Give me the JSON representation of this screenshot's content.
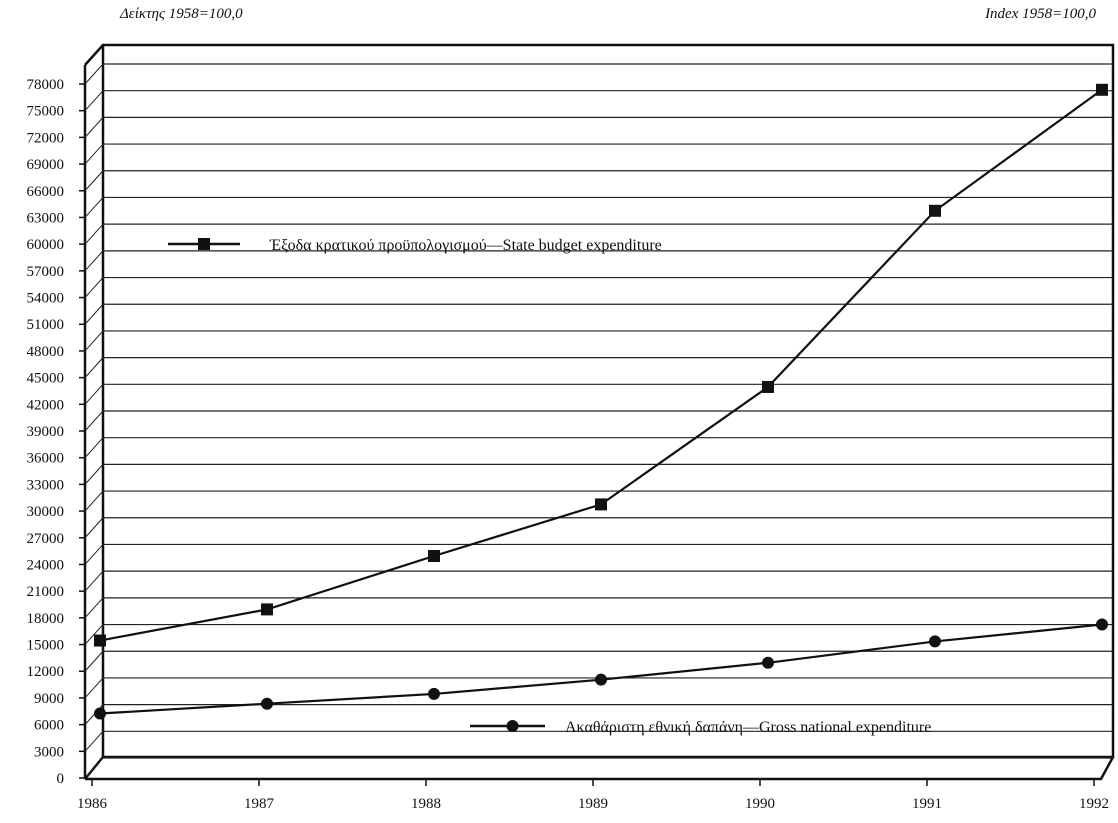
{
  "header": {
    "left_label": "Δείκτης 1958=100,0",
    "right_label": "Index 1958=100,0"
  },
  "chart_data": {
    "type": "line",
    "x": [
      1986,
      1987,
      1988,
      1989,
      1990,
      1991,
      1992
    ],
    "y_ticks": [
      0,
      3000,
      6000,
      9000,
      12000,
      15000,
      18000,
      21000,
      24000,
      27000,
      30000,
      33000,
      36000,
      39000,
      42000,
      45000,
      48000,
      51000,
      54000,
      57000,
      60000,
      63000,
      66000,
      69000,
      72000,
      75000,
      78000
    ],
    "ylim": [
      0,
      78000
    ],
    "grid": true,
    "series": [
      {
        "name": "Έξοδα κρατικού προϋπολογισμού—State budget expenditure",
        "marker": "square",
        "values": [
          15000,
          18500,
          24500,
          30300,
          43500,
          63300,
          76900
        ]
      },
      {
        "name": "Ακαθάριστη εθνική δαπάνη—Gross national expenditure",
        "marker": "circle",
        "values": [
          6800,
          7900,
          9000,
          10600,
          12500,
          14900,
          16800
        ]
      }
    ],
    "colors": {
      "line": "#111111",
      "grid": "#222222"
    }
  }
}
